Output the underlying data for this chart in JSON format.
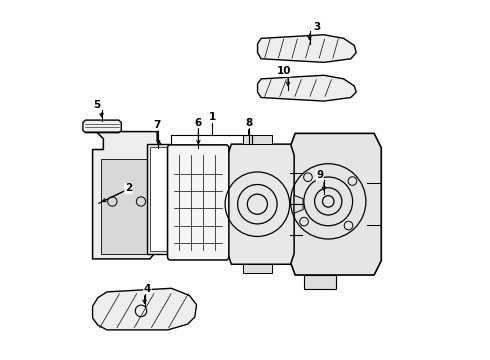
{
  "background_color": "#ffffff",
  "line_color": "#000000",
  "line_width": 1.0,
  "fig_width": 4.9,
  "fig_height": 3.6,
  "dpi": 100
}
